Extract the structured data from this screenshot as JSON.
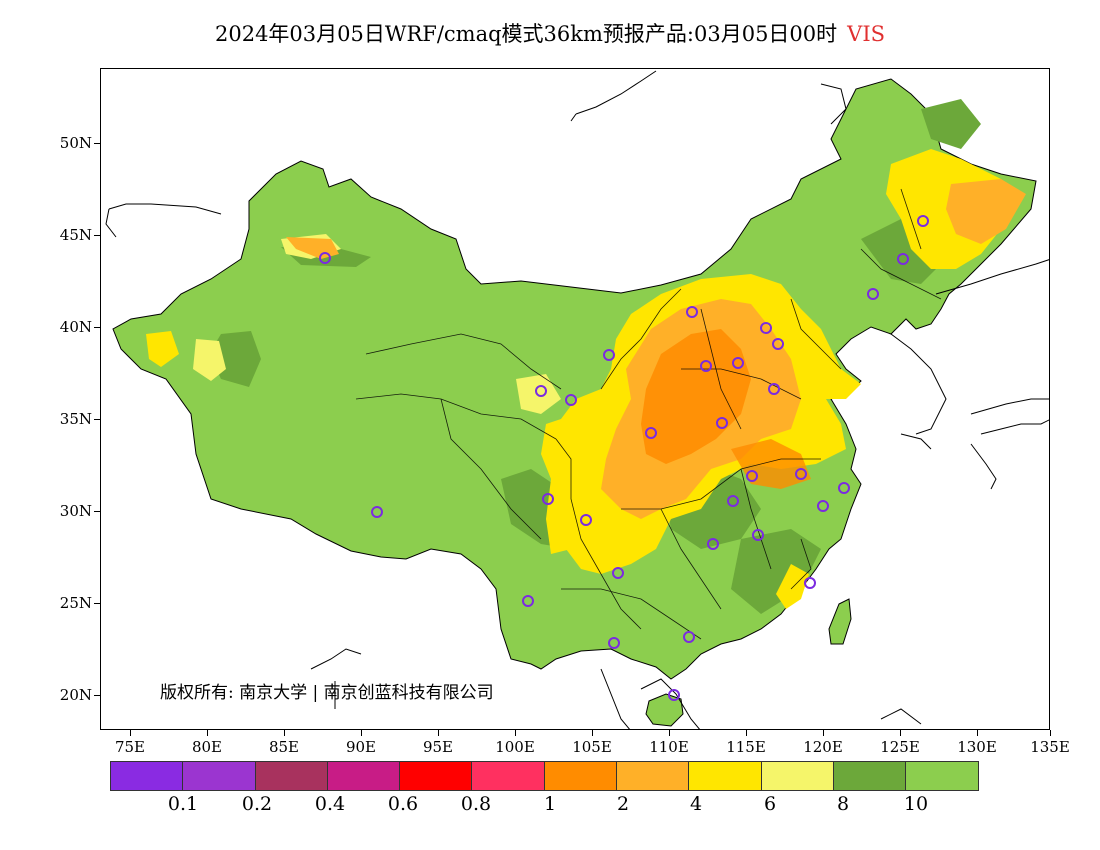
{
  "title": "2024年03月05日WRF/cmaq模式36km预报产品:03月05日00时",
  "variable": "VIS",
  "copyright": "版权所有: 南京大学 | 南京创蓝科技有限公司",
  "axes": {
    "lat_labels": [
      "50N",
      "45N",
      "40N",
      "35N",
      "30N",
      "25N",
      "20N"
    ],
    "lon_labels": [
      "75E",
      "80E",
      "85E",
      "90E",
      "95E",
      "100E",
      "105E",
      "110E",
      "115E",
      "120E",
      "125E",
      "130E",
      "135E"
    ]
  },
  "legend": {
    "colors": [
      "#8a2be2",
      "#9b35d0",
      "#a8325e",
      "#c81c86",
      "#ff0000",
      "#ff3060",
      "#ff8c00",
      "#ffb028",
      "#ffe600",
      "#f5f56a",
      "#6ca83a",
      "#8cce4e"
    ],
    "labels": [
      "0.1",
      "0.2",
      "0.4",
      "0.6",
      "0.8",
      "1",
      "2",
      "4",
      "6",
      "8",
      "10"
    ]
  },
  "map_colors": {
    "base_green": "#8cce4e",
    "dark_green": "#6ca83a",
    "light_yellow": "#f5f56a",
    "yellow": "#ffe600",
    "orange_light": "#ffb028",
    "orange": "#ff8c00",
    "coast": "#000000"
  }
}
